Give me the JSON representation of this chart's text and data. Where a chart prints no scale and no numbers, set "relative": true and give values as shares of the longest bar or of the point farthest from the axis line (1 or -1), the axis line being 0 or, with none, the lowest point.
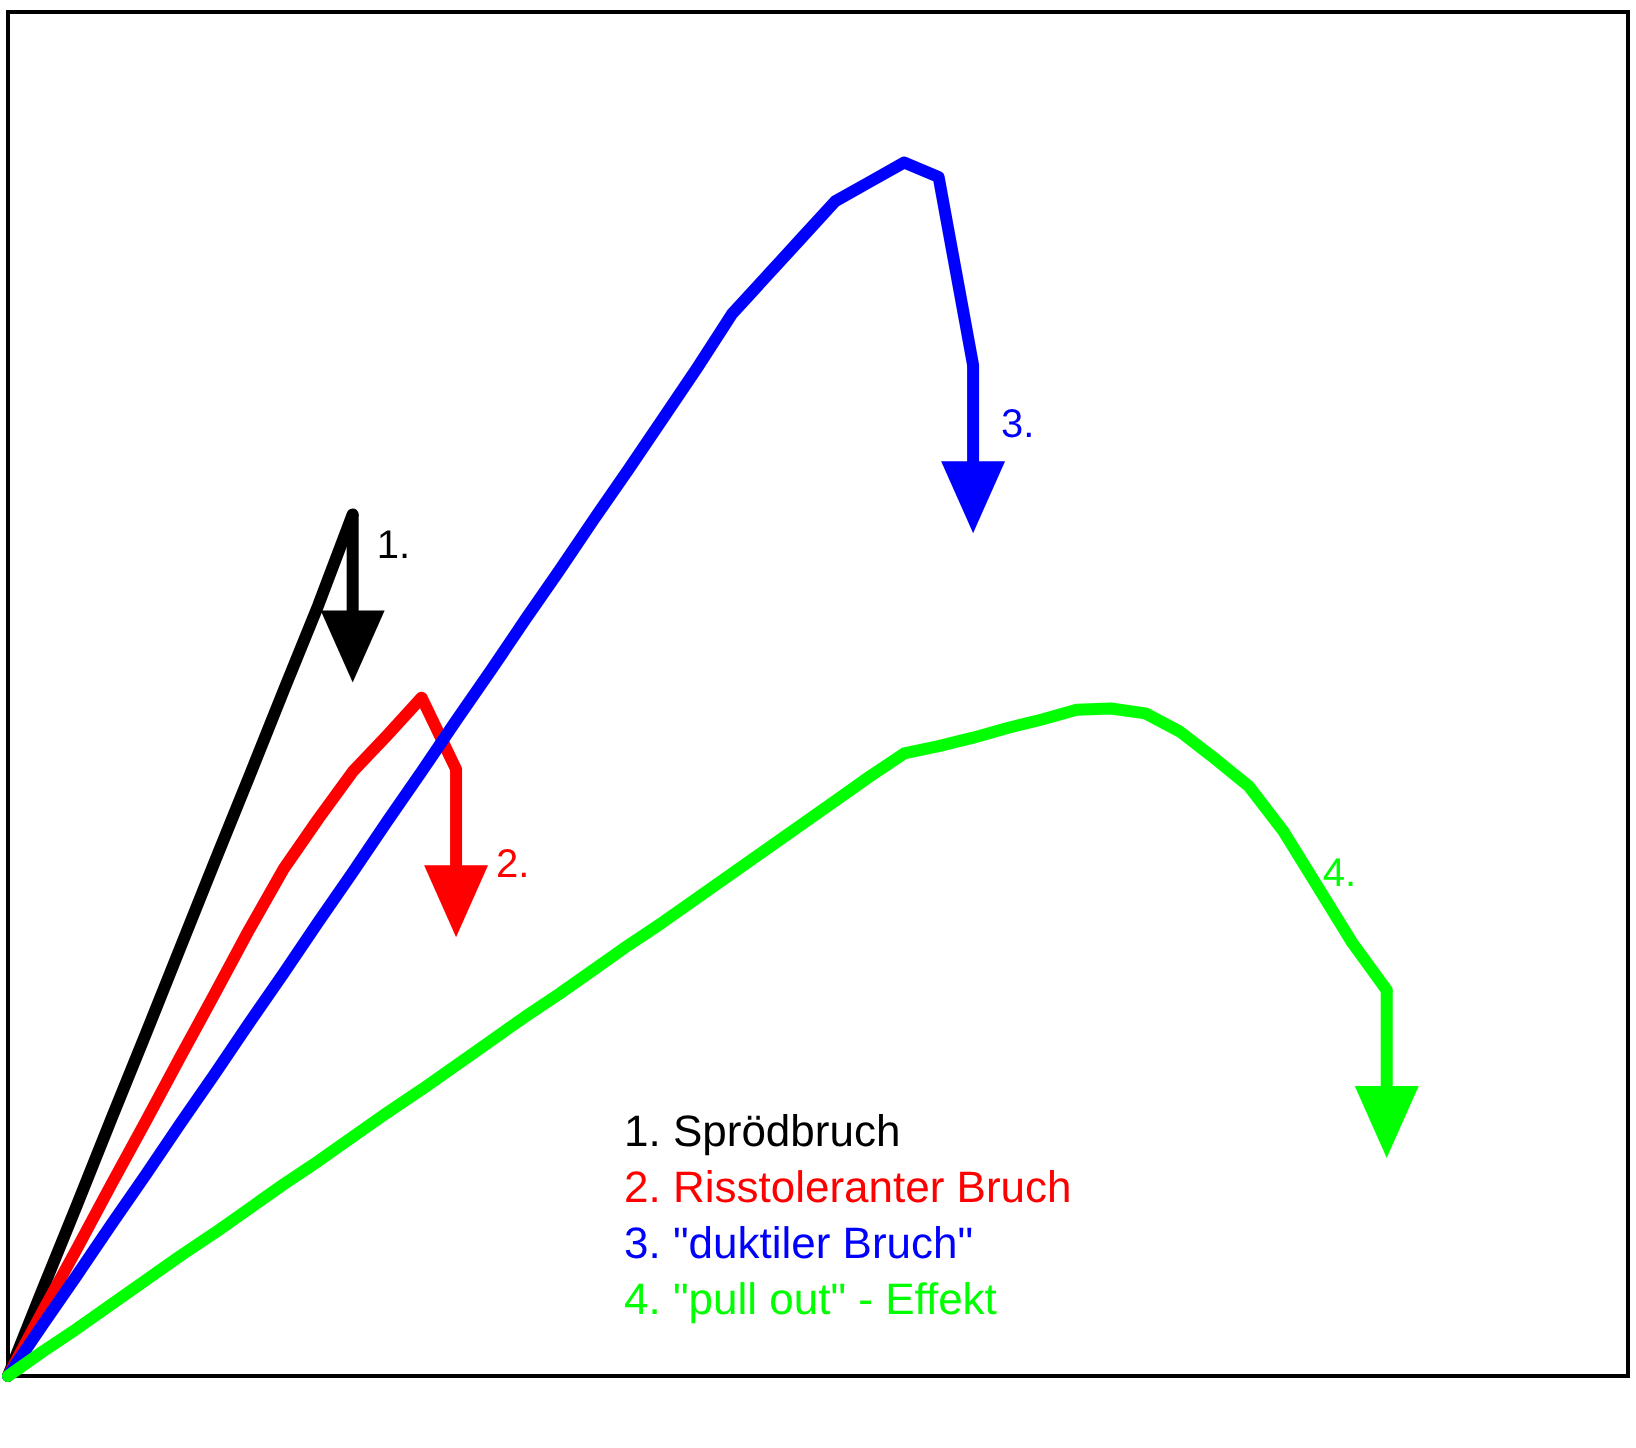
{
  "chart_data": {
    "type": "line",
    "relative": true,
    "line_style": "solid",
    "categories": [
      null,
      null,
      null,
      null,
      null,
      null,
      null,
      null,
      null,
      null,
      null,
      null,
      null,
      null,
      null,
      null,
      null,
      null,
      null,
      null,
      null,
      null,
      null,
      null,
      null,
      null,
      null,
      null,
      null,
      null,
      null,
      null,
      null,
      null,
      null,
      null,
      null,
      null,
      null,
      null,
      null,
      null,
      null,
      null,
      null,
      null,
      null,
      null
    ],
    "series": [
      {
        "name": "1. Sprödbruch",
        "color": "#000000",
        "values": [
          0,
          0.071,
          0.141,
          0.212,
          0.282,
          0.353,
          0.424,
          0.494,
          0.565,
          0.635,
          0.71,
          null,
          null,
          null,
          null,
          null,
          null,
          null,
          null,
          null,
          null,
          null,
          null,
          null,
          null,
          null,
          null,
          null,
          null,
          null,
          null,
          null,
          null,
          null,
          null,
          null,
          null,
          null,
          null,
          null,
          null,
          null,
          null,
          null,
          null,
          null,
          null,
          null
        ]
      },
      {
        "name": "2. Risstoleranter Bruch",
        "color": "#ff0000",
        "values": [
          0,
          0.053,
          0.105,
          0.158,
          0.21,
          0.263,
          0.315,
          0.368,
          0.418,
          0.459,
          0.498,
          0.528,
          0.559,
          0.5,
          null,
          null,
          null,
          null,
          null,
          null,
          null,
          null,
          null,
          null,
          null,
          null,
          null,
          null,
          null,
          null,
          null,
          null,
          null,
          null,
          null,
          null,
          null,
          null,
          null,
          null,
          null,
          null,
          null,
          null,
          null,
          null,
          null,
          null
        ]
      },
      {
        "name": "3. \"duktiler Bruch\"",
        "color": "#0000ff",
        "values": [
          0,
          0.042,
          0.083,
          0.125,
          0.166,
          0.208,
          0.249,
          0.291,
          0.332,
          0.374,
          0.415,
          0.457,
          0.498,
          0.54,
          0.581,
          0.623,
          0.664,
          0.706,
          0.747,
          0.789,
          0.831,
          0.875,
          0.906,
          0.937,
          0.968,
          0.984,
          1,
          0.988,
          0.833,
          null,
          null,
          null,
          null,
          null,
          null,
          null,
          null,
          null,
          null,
          null,
          null,
          null,
          null,
          null,
          null,
          null,
          null,
          null
        ]
      },
      {
        "name": "4. \"pull out\" - Effekt",
        "color": "#00ff00",
        "values": [
          0,
          0.02,
          0.039,
          0.059,
          0.079,
          0.099,
          0.118,
          0.138,
          0.158,
          0.177,
          0.197,
          0.217,
          0.236,
          0.256,
          0.276,
          0.296,
          0.315,
          0.335,
          0.355,
          0.374,
          0.394,
          0.414,
          0.434,
          0.454,
          0.474,
          0.494,
          0.513,
          0.519,
          0.526,
          0.534,
          0.541,
          0.549,
          0.55,
          0.546,
          0.531,
          0.509,
          0.486,
          0.449,
          0.403,
          0.357,
          0.318,
          null,
          null,
          null,
          null,
          null,
          null,
          null
        ]
      }
    ],
    "annotations": [
      "1.",
      "2.",
      "3.",
      "4."
    ]
  }
}
